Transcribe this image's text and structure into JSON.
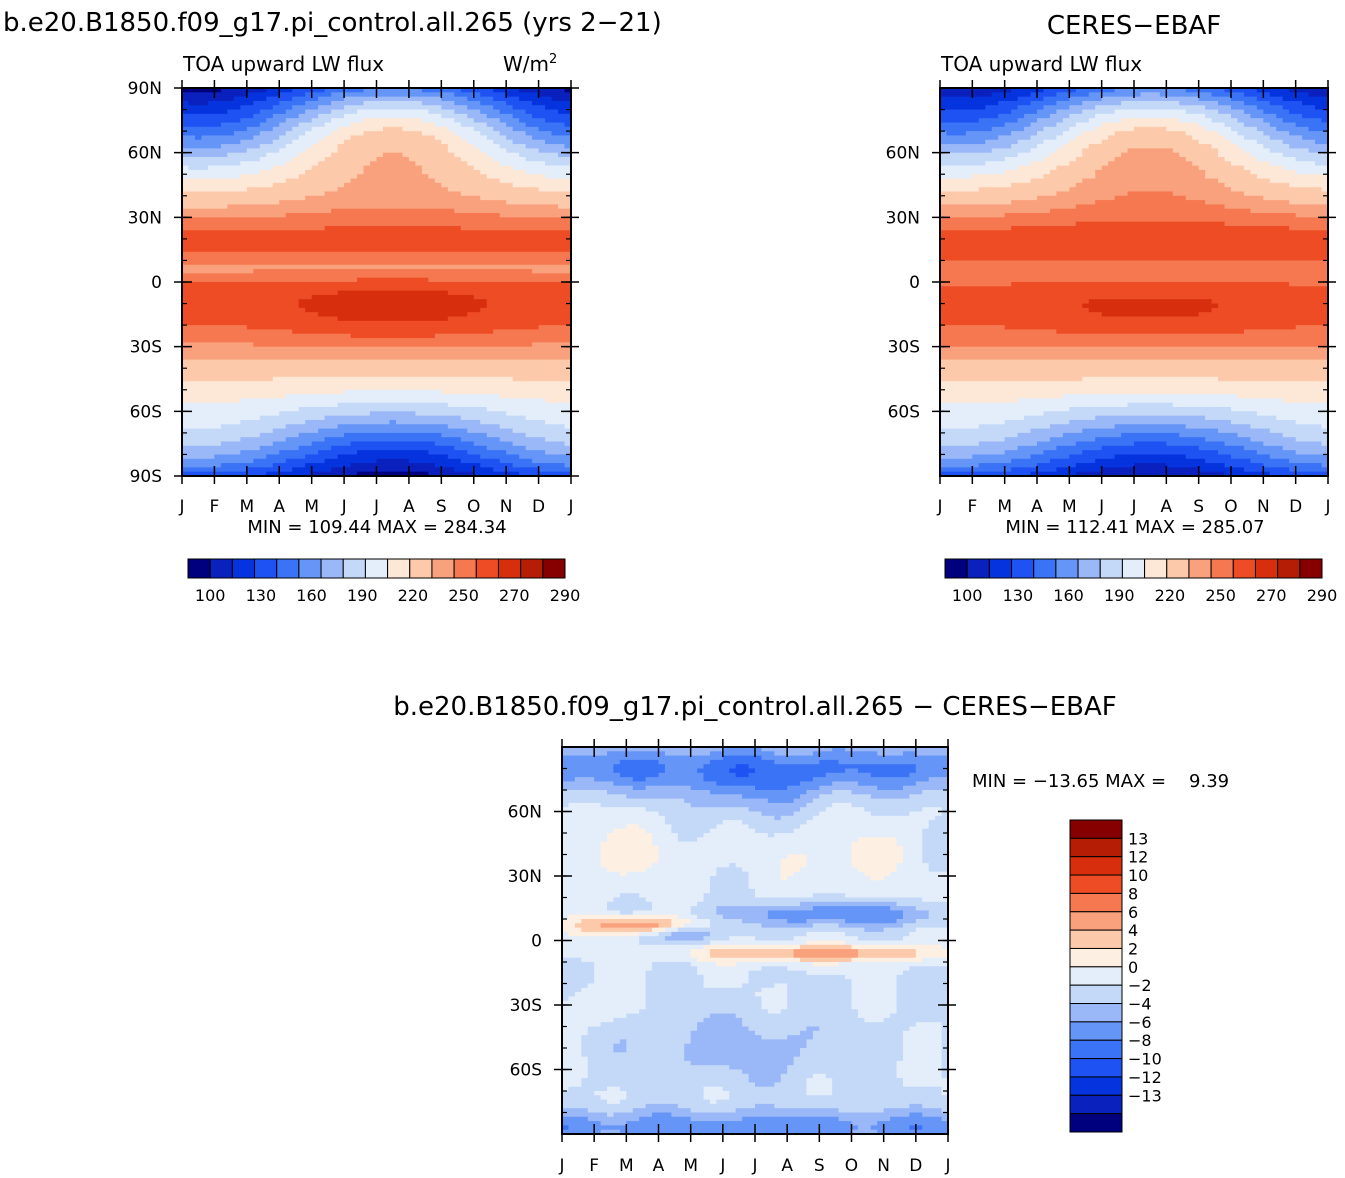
{
  "model_name": "b.e20.B1850.f09_g17.pi_control.all.265",
  "chart_data": [
    {
      "type": "heatmap",
      "id": "model",
      "title": "b.e20.B1850.f09_g17.pi_control.all.265 (yrs 2−21)",
      "subtitle": "TOA upward LW flux",
      "units": "W/m",
      "units_sup": "2",
      "ytick_labels": [
        "90N",
        "60N",
        "30N",
        "0",
        "30S",
        "60S",
        "90S"
      ],
      "ytick_values": [
        90,
        60,
        30,
        0,
        -30,
        -60,
        -90
      ],
      "xtick_labels": [
        "J",
        "F",
        "M",
        "A",
        "M",
        "J",
        "J",
        "A",
        "S",
        "O",
        "N",
        "D",
        "J"
      ],
      "ylim": [
        -90,
        90
      ],
      "stats": "MIN = 109.44 MAX = 284.34",
      "min": 109.44,
      "max": 284.34,
      "colorbar_labels": [
        "100",
        "130",
        "160",
        "190",
        "220",
        "250",
        "270",
        "290"
      ],
      "contour_levels": [
        100,
        115,
        130,
        145,
        160,
        175,
        190,
        205,
        220,
        235,
        250,
        260,
        270,
        280,
        290
      ]
    },
    {
      "type": "heatmap",
      "id": "obs",
      "title": "CERES−EBAF",
      "subtitle": "TOA upward LW flux",
      "ytick_labels": [
        "60N",
        "30N",
        "0",
        "30S",
        "60S"
      ],
      "ytick_values": [
        60,
        30,
        0,
        -30,
        -60
      ],
      "xtick_labels": [
        "J",
        "F",
        "M",
        "A",
        "M",
        "J",
        "J",
        "A",
        "S",
        "O",
        "N",
        "D",
        "J"
      ],
      "ylim": [
        -90,
        90
      ],
      "stats": "MIN = 112.41 MAX = 285.07",
      "min": 112.41,
      "max": 285.07,
      "colorbar_labels": [
        "100",
        "130",
        "160",
        "190",
        "220",
        "250",
        "270",
        "290"
      ],
      "contour_levels": [
        100,
        115,
        130,
        145,
        160,
        175,
        190,
        205,
        220,
        235,
        250,
        260,
        270,
        280,
        290
      ]
    },
    {
      "type": "heatmap",
      "id": "diff",
      "title": "b.e20.B1850.f09_g17.pi_control.all.265 − CERES−EBAF",
      "ytick_labels": [
        "60N",
        "30N",
        "0",
        "30S",
        "60S"
      ],
      "ytick_values": [
        60,
        30,
        0,
        -30,
        -60
      ],
      "xtick_labels": [
        "J",
        "F",
        "M",
        "A",
        "M",
        "J",
        "J",
        "A",
        "S",
        "O",
        "N",
        "D",
        "J"
      ],
      "ylim": [
        -90,
        90
      ],
      "stats": "MIN = −13.65 MAX =    9.39",
      "min": -13.65,
      "max": 9.39,
      "colorbar_labels": [
        "13",
        "12",
        "10",
        "8",
        "6",
        "4",
        "2",
        "0",
        "−2",
        "−4",
        "−6",
        "−8",
        "−10",
        "−12",
        "−13"
      ],
      "contour_levels": [
        -13,
        -12,
        -10,
        -8,
        -6,
        -4,
        -2,
        0,
        2,
        4,
        6,
        8,
        10,
        12,
        13
      ]
    }
  ],
  "colors": {
    "absolute": [
      "#00007f",
      "#0a21be",
      "#0533de",
      "#1e52f2",
      "#3a73f5",
      "#6595f7",
      "#9ab8f7",
      "#c4d8f7",
      "#e4eefa",
      "#fde8d8",
      "#fcc9aa",
      "#f9a17c",
      "#f57850",
      "#ee4c25",
      "#d72e0e",
      "#b51d05",
      "#860000"
    ],
    "difference": [
      "#00007f",
      "#0a21be",
      "#0533de",
      "#1e52f2",
      "#3a73f5",
      "#6595f7",
      "#9ab8f7",
      "#c4d8f7",
      "#e4eefa",
      "#fdf0e2",
      "#fcc9aa",
      "#f9a17c",
      "#f57850",
      "#ee4c25",
      "#d72e0e",
      "#b51d05",
      "#860000"
    ]
  }
}
